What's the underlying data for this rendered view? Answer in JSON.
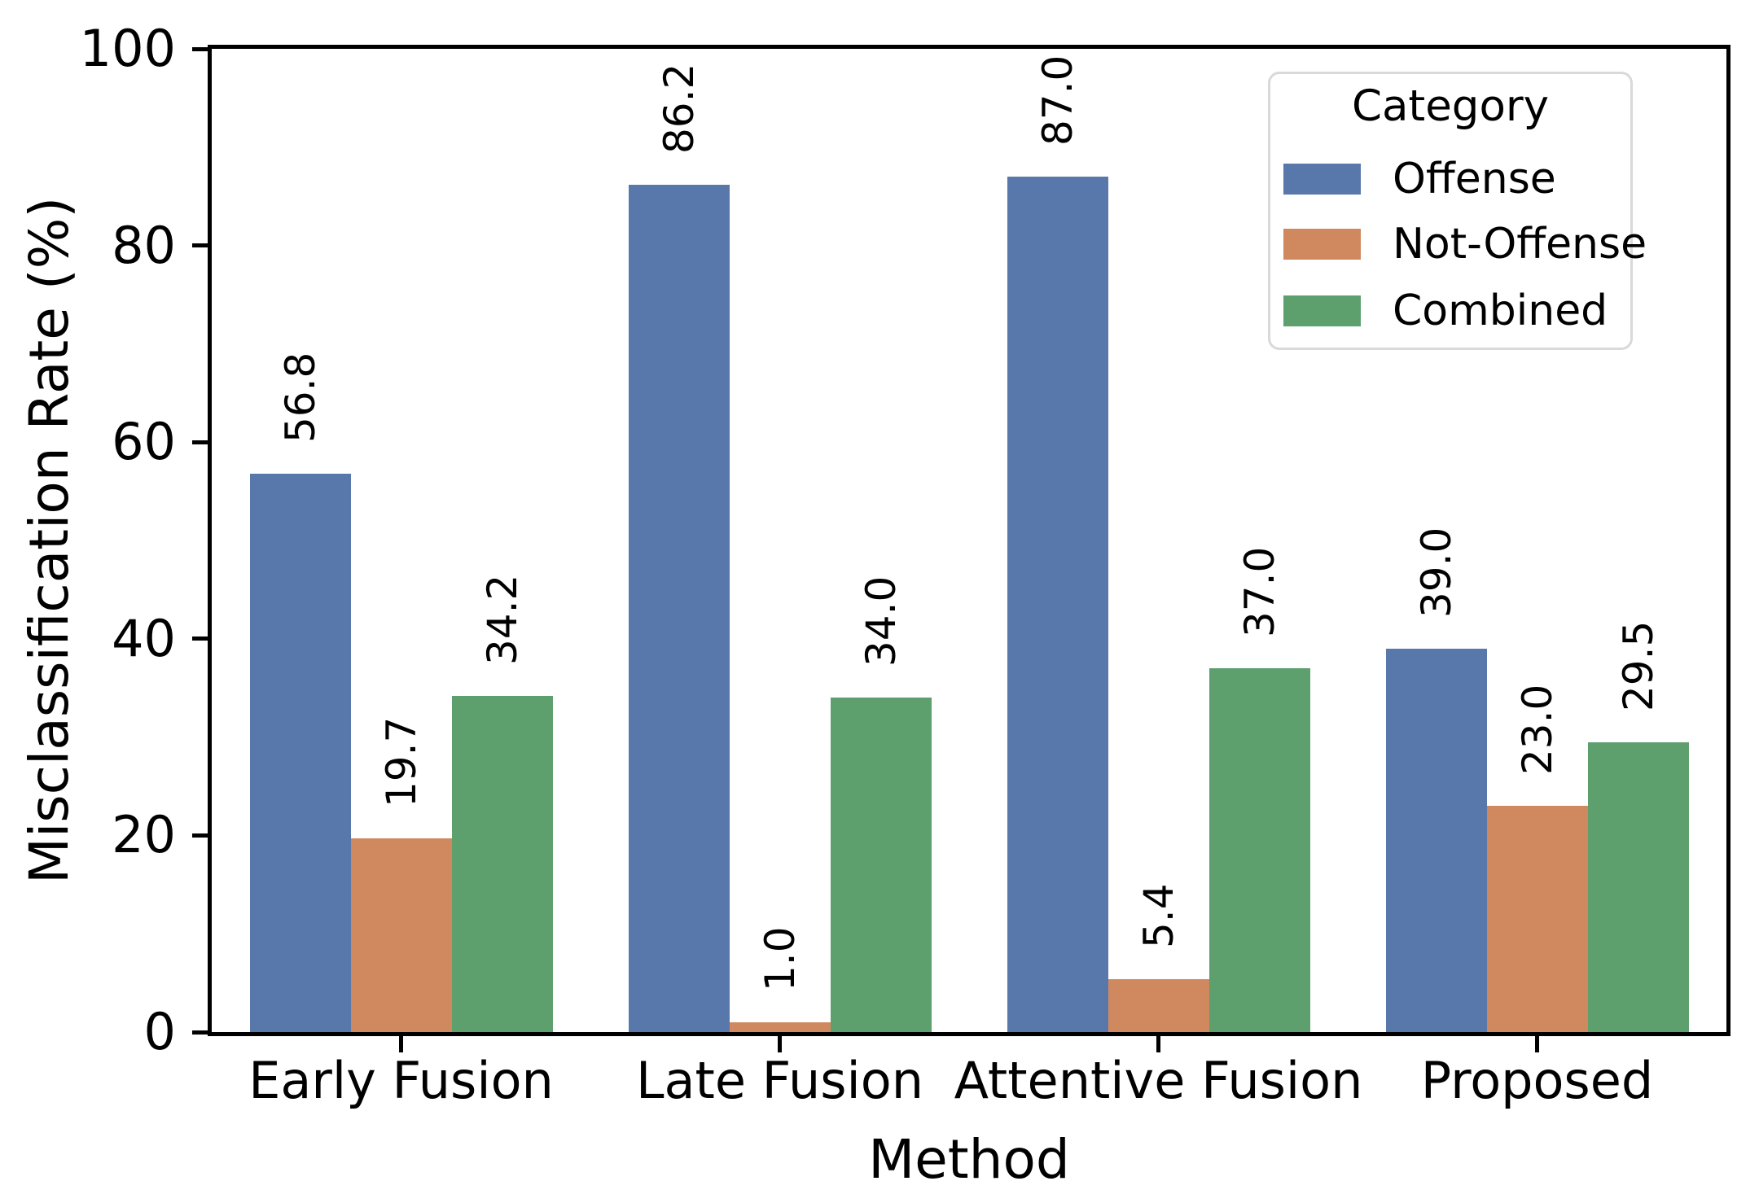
{
  "chart_data": {
    "type": "bar",
    "title": "",
    "xlabel": "Method",
    "ylabel": "Misclassification Rate (%)",
    "categories": [
      "Early Fusion",
      "Late Fusion",
      "Attentive Fusion",
      "Proposed"
    ],
    "series": [
      {
        "name": "Offense",
        "color": "#5878ab",
        "values": [
          56.8,
          86.2,
          87.0,
          39.0
        ]
      },
      {
        "name": "Not-Offense",
        "color": "#d0895f",
        "values": [
          19.7,
          1.0,
          5.4,
          23.0
        ]
      },
      {
        "name": "Combined",
        "color": "#5da06d",
        "values": [
          34.2,
          34.0,
          37.0,
          29.5
        ]
      }
    ],
    "bar_value_labels": {
      "Offense": [
        "56.8",
        "86.2",
        "87.0",
        "39.0"
      ],
      "Not-Offense": [
        "19.7",
        "1.0",
        "5.4",
        "23.0"
      ],
      "Combined": [
        "34.2",
        "34.0",
        "37.0",
        "29.5"
      ]
    },
    "ylim": [
      0,
      100
    ],
    "yticks": [
      0,
      20,
      40,
      60,
      80,
      100
    ],
    "grid": false,
    "legend": {
      "title": "Category",
      "entries": [
        "Offense",
        "Not-Offense",
        "Combined"
      ],
      "position": "upper right"
    },
    "value_label_rotation": -90,
    "axis_color": "#000000",
    "background_color": "#ffffff"
  }
}
